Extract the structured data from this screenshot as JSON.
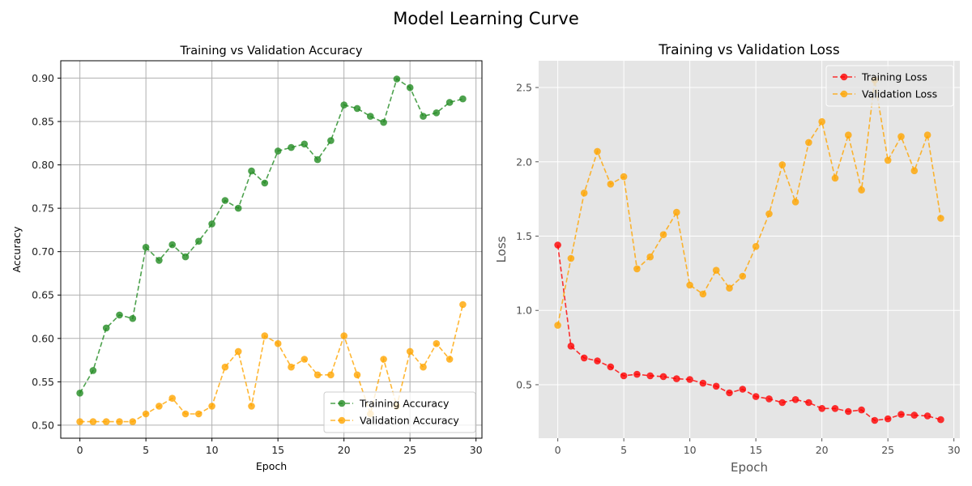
{
  "figure": {
    "title": "Model Learning Curve"
  },
  "chart_data": [
    {
      "type": "line",
      "title": "Training vs Validation Accuracy",
      "xlabel": "Epoch",
      "ylabel": "Accuracy",
      "xlim": [
        -1.45,
        30.45
      ],
      "ylim": [
        0.485,
        0.92
      ],
      "xticks": [
        0,
        5,
        10,
        15,
        20,
        25,
        30
      ],
      "yticks": [
        0.5,
        0.55,
        0.6,
        0.65,
        0.7,
        0.75,
        0.8,
        0.85,
        0.9
      ],
      "ytick_labels": [
        "0.50",
        "0.55",
        "0.60",
        "0.65",
        "0.70",
        "0.75",
        "0.80",
        "0.85",
        "0.90"
      ],
      "grid": true,
      "style": "classic",
      "legend": "lower-right",
      "x": [
        0,
        1,
        2,
        3,
        4,
        5,
        6,
        7,
        8,
        9,
        10,
        11,
        12,
        13,
        14,
        15,
        16,
        17,
        18,
        19,
        20,
        21,
        22,
        23,
        24,
        25,
        26,
        27,
        28,
        29
      ],
      "series": [
        {
          "name": "Training Accuracy",
          "color": "#228b22",
          "values": [
            0.537,
            0.563,
            0.612,
            0.627,
            0.623,
            0.705,
            0.69,
            0.708,
            0.694,
            0.712,
            0.732,
            0.759,
            0.75,
            0.793,
            0.779,
            0.816,
            0.82,
            0.824,
            0.806,
            0.828,
            0.869,
            0.865,
            0.856,
            0.849,
            0.899,
            0.889,
            0.856,
            0.86,
            0.872,
            0.876
          ]
        },
        {
          "name": "Validation Accuracy",
          "color": "#ffa500",
          "values": [
            0.504,
            0.504,
            0.504,
            0.504,
            0.504,
            0.513,
            0.522,
            0.531,
            0.513,
            0.513,
            0.522,
            0.567,
            0.585,
            0.522,
            0.603,
            0.594,
            0.567,
            0.576,
            0.558,
            0.558,
            0.603,
            0.558,
            0.513,
            0.576,
            0.522,
            0.585,
            0.567,
            0.594,
            0.576,
            0.639
          ]
        }
      ]
    },
    {
      "type": "line",
      "title": "Training vs Validation Loss",
      "xlabel": "Epoch",
      "ylabel": "Loss",
      "xlim": [
        -1.45,
        30.45
      ],
      "ylim": [
        0.14,
        2.68
      ],
      "xticks": [
        0,
        5,
        10,
        15,
        20,
        25,
        30
      ],
      "yticks": [
        0.5,
        1.0,
        1.5,
        2.0,
        2.5
      ],
      "ytick_labels": [
        "0.5",
        "1.0",
        "1.5",
        "2.0",
        "2.5"
      ],
      "grid": true,
      "style": "ggplot",
      "legend": "top-right",
      "x": [
        0,
        1,
        2,
        3,
        4,
        5,
        6,
        7,
        8,
        9,
        10,
        11,
        12,
        13,
        14,
        15,
        16,
        17,
        18,
        19,
        20,
        21,
        22,
        23,
        24,
        25,
        26,
        27,
        28,
        29
      ],
      "series": [
        {
          "name": "Training Loss",
          "color": "#ff0000",
          "values": [
            1.44,
            0.76,
            0.68,
            0.66,
            0.62,
            0.56,
            0.57,
            0.56,
            0.555,
            0.54,
            0.535,
            0.51,
            0.49,
            0.445,
            0.47,
            0.42,
            0.405,
            0.38,
            0.4,
            0.38,
            0.34,
            0.34,
            0.32,
            0.33,
            0.26,
            0.27,
            0.3,
            0.295,
            0.29,
            0.265
          ]
        },
        {
          "name": "Validation Loss",
          "color": "#ffa500",
          "values": [
            0.9,
            1.35,
            1.79,
            2.07,
            1.85,
            1.9,
            1.28,
            1.36,
            1.51,
            1.66,
            1.17,
            1.11,
            1.27,
            1.15,
            1.23,
            1.43,
            1.65,
            1.98,
            1.73,
            2.13,
            2.27,
            1.89,
            2.18,
            1.81,
            2.55,
            2.01,
            2.17,
            1.94,
            2.18,
            1.62
          ]
        }
      ]
    }
  ]
}
